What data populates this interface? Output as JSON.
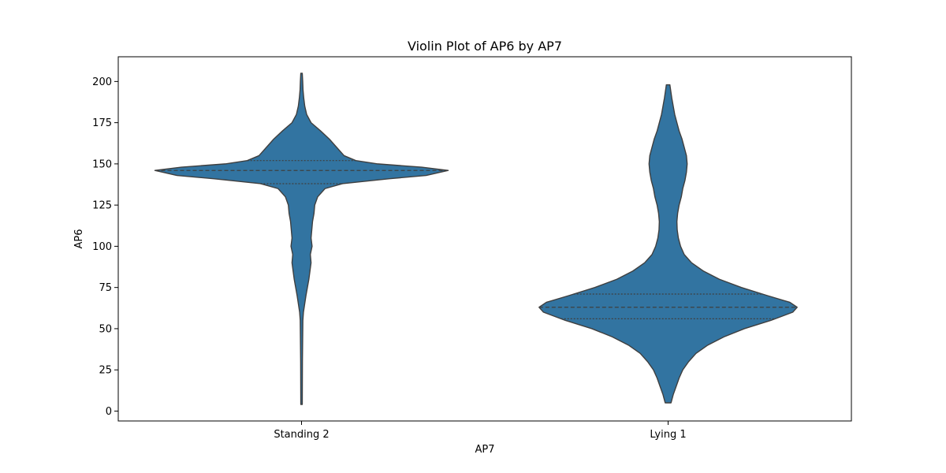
{
  "chart_data": {
    "type": "violin",
    "title": "Violin Plot of AP6 by AP7",
    "xlabel": "AP7",
    "ylabel": "AP6",
    "categories": [
      "Standing 2",
      "Lying 1"
    ],
    "ylim": [
      -6,
      215
    ],
    "yticks": [
      0,
      25,
      50,
      75,
      100,
      125,
      150,
      175,
      200
    ],
    "grid": false,
    "color": "#3274a1",
    "edge_color": "#3f3f3f",
    "violins": [
      {
        "category": "Standing 2",
        "min": 4,
        "max": 205,
        "quartiles": {
          "q1": 138,
          "median": 146,
          "q3": 152
        },
        "density": [
          [
            4,
            0.005
          ],
          [
            30,
            0.006
          ],
          [
            55,
            0.009
          ],
          [
            60,
            0.013
          ],
          [
            70,
            0.03
          ],
          [
            80,
            0.05
          ],
          [
            90,
            0.065
          ],
          [
            95,
            0.06
          ],
          [
            100,
            0.072
          ],
          [
            105,
            0.065
          ],
          [
            110,
            0.07
          ],
          [
            115,
            0.075
          ],
          [
            120,
            0.085
          ],
          [
            125,
            0.09
          ],
          [
            130,
            0.11
          ],
          [
            135,
            0.16
          ],
          [
            138,
            0.28
          ],
          [
            141,
            0.6
          ],
          [
            143,
            0.85
          ],
          [
            146,
            1.0
          ],
          [
            148,
            0.82
          ],
          [
            150,
            0.52
          ],
          [
            152,
            0.37
          ],
          [
            155,
            0.29
          ],
          [
            160,
            0.24
          ],
          [
            165,
            0.19
          ],
          [
            170,
            0.13
          ],
          [
            175,
            0.065
          ],
          [
            180,
            0.035
          ],
          [
            185,
            0.022
          ],
          [
            190,
            0.015
          ],
          [
            195,
            0.01
          ],
          [
            200,
            0.008
          ],
          [
            205,
            0.005
          ]
        ]
      },
      {
        "category": "Lying 1",
        "min": 5,
        "max": 198,
        "quartiles": {
          "q1": 56,
          "median": 63,
          "q3": 71
        },
        "density": [
          [
            5,
            0.02
          ],
          [
            10,
            0.035
          ],
          [
            15,
            0.055
          ],
          [
            20,
            0.075
          ],
          [
            25,
            0.1
          ],
          [
            30,
            0.14
          ],
          [
            35,
            0.19
          ],
          [
            40,
            0.27
          ],
          [
            45,
            0.38
          ],
          [
            50,
            0.52
          ],
          [
            55,
            0.7
          ],
          [
            60,
            0.85
          ],
          [
            63,
            0.88
          ],
          [
            66,
            0.83
          ],
          [
            70,
            0.68
          ],
          [
            75,
            0.5
          ],
          [
            80,
            0.35
          ],
          [
            85,
            0.24
          ],
          [
            90,
            0.16
          ],
          [
            95,
            0.11
          ],
          [
            100,
            0.085
          ],
          [
            105,
            0.07
          ],
          [
            110,
            0.062
          ],
          [
            115,
            0.06
          ],
          [
            120,
            0.065
          ],
          [
            125,
            0.075
          ],
          [
            130,
            0.09
          ],
          [
            135,
            0.1
          ],
          [
            140,
            0.115
          ],
          [
            145,
            0.125
          ],
          [
            150,
            0.13
          ],
          [
            155,
            0.125
          ],
          [
            160,
            0.11
          ],
          [
            165,
            0.095
          ],
          [
            170,
            0.075
          ],
          [
            175,
            0.06
          ],
          [
            180,
            0.045
          ],
          [
            185,
            0.035
          ],
          [
            190,
            0.025
          ],
          [
            198,
            0.012
          ]
        ]
      }
    ]
  }
}
